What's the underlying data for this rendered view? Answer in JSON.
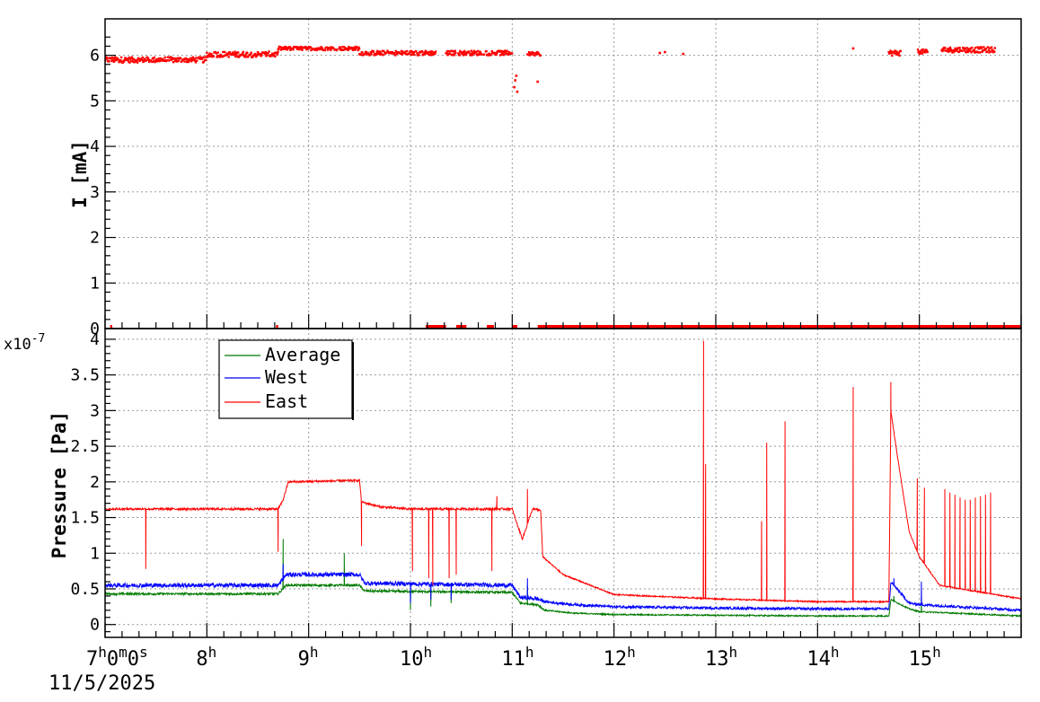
{
  "colors": {
    "current": "#ff0000",
    "average": "#007a00",
    "west": "#0000ff",
    "east": "#ff0000",
    "grid": "#9a9a9a",
    "frame": "#000000"
  },
  "chart_data": [
    {
      "type": "scatter",
      "ylabel": "I [mA]",
      "ylim": [
        0,
        6.8
      ],
      "yticks": [
        0,
        1,
        2,
        3,
        4,
        5,
        6
      ],
      "xlim": [
        7.0,
        16.0
      ],
      "grid": true,
      "series": [
        {
          "color": "#ff0000",
          "segments": [
            {
              "x0": 7.0,
              "x1": 8.0,
              "y": 5.9,
              "spread": 0.12
            },
            {
              "x0": 8.0,
              "x1": 8.7,
              "y": 6.02,
              "spread": 0.12
            },
            {
              "x0": 8.7,
              "x1": 9.5,
              "y": 6.15,
              "spread": 0.08
            },
            {
              "x0": 9.5,
              "x1": 10.25,
              "y": 6.05,
              "spread": 0.1
            },
            {
              "x0": 10.35,
              "x1": 11.0,
              "y": 6.05,
              "spread": 0.1
            },
            {
              "x0": 11.15,
              "x1": 11.28,
              "y": 6.03,
              "spread": 0.08
            },
            {
              "x0": 14.7,
              "x1": 14.82,
              "y": 6.05,
              "spread": 0.12
            },
            {
              "x0": 14.98,
              "x1": 15.08,
              "y": 6.08,
              "spread": 0.1
            },
            {
              "x0": 15.22,
              "x1": 15.75,
              "y": 6.12,
              "spread": 0.12
            }
          ],
          "points": [
            [
              11.02,
              5.3
            ],
            [
              11.03,
              5.45
            ],
            [
              11.04,
              5.55
            ],
            [
              11.05,
              5.2
            ],
            [
              11.25,
              5.42
            ],
            [
              12.45,
              6.05
            ],
            [
              12.5,
              6.07
            ],
            [
              12.68,
              6.03
            ],
            [
              14.35,
              6.15
            ]
          ],
          "zero_segments": [
            [
              7.05,
              7.07
            ],
            [
              8.68,
              8.7
            ],
            [
              10.15,
              10.35
            ],
            [
              10.45,
              10.55
            ],
            [
              10.75,
              10.82
            ],
            [
              11.0,
              11.05
            ],
            [
              11.25,
              16.0
            ]
          ]
        }
      ]
    },
    {
      "type": "line",
      "ylabel": "Pressure [Pa]",
      "multiplier": "x10-7",
      "ylim": [
        -0.18,
        4.15
      ],
      "yticks": [
        0,
        0.5,
        1,
        1.5,
        2,
        2.5,
        3,
        3.5,
        4
      ],
      "ytick_labels": [
        "0",
        "0.5",
        "1",
        "1.5",
        "2",
        "2.5",
        "3",
        "3.5",
        "4"
      ],
      "xlim": [
        7.0,
        16.0
      ],
      "xticks": [
        7,
        8,
        9,
        10,
        11,
        12,
        13,
        14,
        15
      ],
      "xtick_labels": [
        "7h0m0s",
        "8h",
        "9h",
        "10h",
        "11h",
        "12h",
        "13h",
        "14h",
        "15h"
      ],
      "date_label": "11/5/2025",
      "grid": true,
      "legend": "top-left",
      "series": [
        {
          "name": "Average",
          "color": "#007a00",
          "noise": 0.015,
          "knots": [
            [
              7.0,
              0.43
            ],
            [
              8.7,
              0.43
            ],
            [
              8.78,
              0.55
            ],
            [
              9.5,
              0.55
            ],
            [
              9.55,
              0.47
            ],
            [
              11.0,
              0.45
            ],
            [
              11.08,
              0.3
            ],
            [
              11.25,
              0.28
            ],
            [
              11.32,
              0.2
            ],
            [
              11.6,
              0.16
            ],
            [
              12.0,
              0.14
            ],
            [
              13.0,
              0.13
            ],
            [
              14.0,
              0.12
            ],
            [
              14.7,
              0.12
            ],
            [
              14.72,
              0.35
            ],
            [
              14.9,
              0.22
            ],
            [
              15.0,
              0.18
            ],
            [
              16.0,
              0.12
            ]
          ],
          "spikes": [
            [
              8.75,
              1.2
            ],
            [
              9.35,
              1.0
            ],
            [
              10.0,
              0.2
            ],
            [
              10.2,
              0.25
            ],
            [
              10.4,
              0.3
            ],
            [
              11.15,
              0.55
            ],
            [
              14.75,
              0.4
            ],
            [
              15.02,
              0.38
            ]
          ]
        },
        {
          "name": "West",
          "color": "#0000ff",
          "noise": 0.03,
          "knots": [
            [
              7.0,
              0.55
            ],
            [
              8.7,
              0.55
            ],
            [
              8.78,
              0.7
            ],
            [
              9.5,
              0.7
            ],
            [
              9.55,
              0.58
            ],
            [
              11.0,
              0.55
            ],
            [
              11.08,
              0.38
            ],
            [
              11.25,
              0.36
            ],
            [
              11.32,
              0.32
            ],
            [
              11.6,
              0.28
            ],
            [
              12.0,
              0.25
            ],
            [
              13.0,
              0.23
            ],
            [
              14.0,
              0.22
            ],
            [
              14.7,
              0.22
            ],
            [
              14.72,
              0.6
            ],
            [
              14.9,
              0.3
            ],
            [
              15.0,
              0.28
            ],
            [
              16.0,
              0.2
            ]
          ],
          "spikes": [
            [
              8.75,
              0.85
            ],
            [
              10.0,
              0.3
            ],
            [
              10.2,
              0.35
            ],
            [
              10.4,
              0.35
            ],
            [
              11.15,
              0.65
            ],
            [
              14.75,
              0.65
            ],
            [
              15.02,
              0.6
            ]
          ]
        },
        {
          "name": "East",
          "color": "#ff0000",
          "noise": 0.015,
          "knots": [
            [
              7.0,
              1.62
            ],
            [
              8.7,
              1.62
            ],
            [
              8.75,
              1.75
            ],
            [
              8.8,
              2.0
            ],
            [
              9.5,
              2.02
            ],
            [
              9.52,
              1.72
            ],
            [
              9.7,
              1.65
            ],
            [
              10.0,
              1.62
            ],
            [
              11.0,
              1.62
            ],
            [
              11.05,
              1.4
            ],
            [
              11.1,
              1.2
            ],
            [
              11.2,
              1.62
            ],
            [
              11.28,
              1.6
            ],
            [
              11.3,
              0.95
            ],
            [
              11.5,
              0.7
            ],
            [
              12.0,
              0.42
            ],
            [
              13.0,
              0.36
            ],
            [
              14.0,
              0.32
            ],
            [
              14.7,
              0.32
            ],
            [
              14.72,
              3.0
            ],
            [
              14.78,
              2.4
            ],
            [
              14.9,
              1.3
            ],
            [
              15.0,
              0.95
            ],
            [
              15.2,
              0.55
            ],
            [
              16.0,
              0.36
            ]
          ],
          "spikes": [
            [
              7.4,
              0.78
            ],
            [
              8.7,
              1.02
            ],
            [
              9.52,
              1.1
            ],
            [
              10.02,
              0.75
            ],
            [
              10.18,
              0.65
            ],
            [
              10.22,
              0.55
            ],
            [
              10.38,
              0.65
            ],
            [
              10.45,
              0.7
            ],
            [
              10.8,
              0.75
            ],
            [
              10.85,
              1.8
            ],
            [
              11.15,
              1.9
            ],
            [
              12.88,
              3.98
            ],
            [
              12.9,
              2.25
            ],
            [
              13.45,
              1.45
            ],
            [
              13.5,
              2.55
            ],
            [
              13.68,
              2.85
            ],
            [
              14.35,
              3.33
            ],
            [
              14.72,
              3.4
            ],
            [
              14.98,
              2.05
            ],
            [
              15.05,
              1.92
            ],
            [
              15.25,
              1.9
            ],
            [
              15.3,
              1.85
            ],
            [
              15.35,
              1.82
            ],
            [
              15.4,
              1.78
            ],
            [
              15.45,
              1.75
            ],
            [
              15.5,
              1.75
            ],
            [
              15.55,
              1.78
            ],
            [
              15.6,
              1.8
            ],
            [
              15.65,
              1.82
            ],
            [
              15.7,
              1.85
            ]
          ]
        }
      ]
    }
  ]
}
